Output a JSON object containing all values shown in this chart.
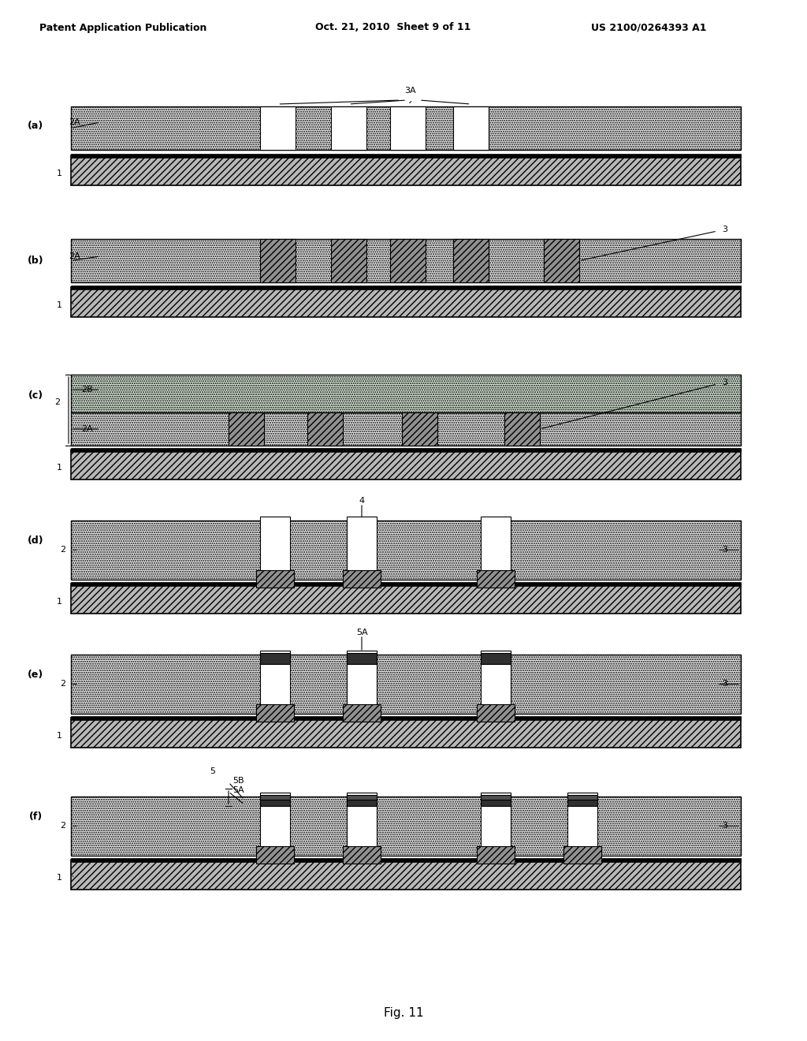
{
  "header_left": "Patent Application Publication",
  "header_center": "Oct. 21, 2010  Sheet 9 of 11",
  "header_right": "US 2100/0264393 A1",
  "footer": "Fig. 11",
  "panels": [
    "(a)",
    "(b)",
    "(c)",
    "(d)",
    "(e)",
    "(f)"
  ],
  "bg_color": "#ffffff",
  "hatch_substrate": "///",
  "hatch_dielectric": "...",
  "hatch_charge": "xxx",
  "hatch_electrode": "///",
  "outline_color": "#000000"
}
